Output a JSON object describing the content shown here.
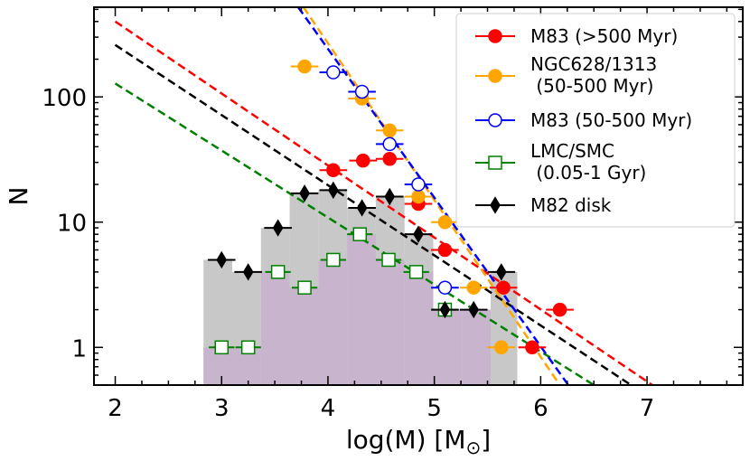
{
  "chart_data": {
    "type": "scatter",
    "title": "",
    "xlabel": "log(M) [M⊙]",
    "ylabel": "N",
    "xlim": [
      1.8,
      7.9
    ],
    "ylim": [
      0.5,
      520
    ],
    "yscale": "log",
    "grid": false,
    "legend_position": "top-right",
    "x_ticks": [
      2,
      3,
      4,
      5,
      6,
      7
    ],
    "y_ticks": [
      1,
      10,
      100
    ],
    "y_tick_labels": [
      "1",
      "10",
      "100"
    ],
    "histograms": [
      {
        "color": "#c8c8c8",
        "bins": [
          {
            "x0": 2.83,
            "x1": 3.1,
            "n": 5
          },
          {
            "x0": 3.1,
            "x1": 3.37,
            "n": 4
          },
          {
            "x0": 3.37,
            "x1": 3.64,
            "n": 9
          },
          {
            "x0": 3.64,
            "x1": 3.91,
            "n": 17
          },
          {
            "x0": 3.91,
            "x1": 4.18,
            "n": 18
          },
          {
            "x0": 4.18,
            "x1": 4.45,
            "n": 13
          },
          {
            "x0": 4.45,
            "x1": 4.72,
            "n": 16
          },
          {
            "x0": 4.72,
            "x1": 4.99,
            "n": 8
          },
          {
            "x0": 4.99,
            "x1": 5.26,
            "n": 2
          },
          {
            "x0": 5.26,
            "x1": 5.53,
            "n": 2
          },
          {
            "x0": 5.53,
            "x1": 5.78,
            "n": 4
          }
        ]
      },
      {
        "color": "#c8b4cc",
        "bins": [
          {
            "x0": 2.83,
            "x1": 3.1,
            "n": 1
          },
          {
            "x0": 3.1,
            "x1": 3.37,
            "n": 1
          },
          {
            "x0": 3.37,
            "x1": 3.64,
            "n": 4
          },
          {
            "x0": 3.64,
            "x1": 3.91,
            "n": 3
          },
          {
            "x0": 3.91,
            "x1": 4.18,
            "n": 5
          },
          {
            "x0": 4.18,
            "x1": 4.45,
            "n": 8
          },
          {
            "x0": 4.45,
            "x1": 4.72,
            "n": 5
          },
          {
            "x0": 4.72,
            "x1": 4.99,
            "n": 4
          },
          {
            "x0": 4.99,
            "x1": 5.26,
            "n": 2
          },
          {
            "x0": 5.26,
            "x1": 5.53,
            "n": 2
          }
        ]
      }
    ],
    "fit_lines": [
      {
        "color": "#ff0000",
        "x": [
          2.0,
          7.05
        ],
        "y": [
          400,
          0.5
        ]
      },
      {
        "color": "#000000",
        "x": [
          2.0,
          6.85
        ],
        "y": [
          260,
          0.5
        ]
      },
      {
        "color": "#008000",
        "x": [
          2.0,
          6.5
        ],
        "y": [
          128,
          0.5
        ]
      },
      {
        "color": "#ffa500",
        "x": [
          3.77,
          6.18
        ],
        "y": [
          520,
          0.5
        ]
      },
      {
        "color": "#0000ff",
        "x": [
          3.72,
          6.26
        ],
        "y": [
          520,
          0.5
        ]
      }
    ],
    "series": [
      {
        "name": "M83 (>500 Myr)",
        "marker": "circle",
        "filled": true,
        "color": "#ff0000",
        "points": [
          {
            "x": 4.05,
            "y": 26,
            "xerr": 0.13
          },
          {
            "x": 4.33,
            "y": 31,
            "xerr": 0.13
          },
          {
            "x": 4.58,
            "y": 32,
            "xerr": 0.13
          },
          {
            "x": 4.85,
            "y": 14,
            "xerr": 0.13
          },
          {
            "x": 5.1,
            "y": 6,
            "xerr": 0.13
          },
          {
            "x": 5.65,
            "y": 3,
            "xerr": 0.13
          },
          {
            "x": 5.92,
            "y": 1,
            "xerr": 0.13
          },
          {
            "x": 6.18,
            "y": 2,
            "xerr": 0.13
          }
        ]
      },
      {
        "name": "NGC628/1313\n (50-500 Myr)",
        "marker": "circle",
        "filled": true,
        "color": "#ffa500",
        "points": [
          {
            "x": 3.78,
            "y": 175,
            "xerr": 0.13
          },
          {
            "x": 4.32,
            "y": 97,
            "xerr": 0.13
          },
          {
            "x": 4.58,
            "y": 54,
            "xerr": 0.13
          },
          {
            "x": 4.85,
            "y": 16,
            "xerr": 0.13
          },
          {
            "x": 5.1,
            "y": 10,
            "xerr": 0.13
          },
          {
            "x": 5.37,
            "y": 3,
            "xerr": 0.13
          },
          {
            "x": 5.63,
            "y": 1,
            "xerr": 0.13
          }
        ]
      },
      {
        "name": "M83 (50-500 Myr)",
        "marker": "circle",
        "filled": false,
        "color": "#0000ff",
        "points": [
          {
            "x": 4.05,
            "y": 157,
            "xerr": 0.13
          },
          {
            "x": 4.32,
            "y": 110,
            "xerr": 0.13
          },
          {
            "x": 4.58,
            "y": 42,
            "xerr": 0.13
          },
          {
            "x": 4.85,
            "y": 20,
            "xerr": 0.13
          },
          {
            "x": 5.1,
            "y": 3,
            "xerr": 0.13
          }
        ]
      },
      {
        "name": "LMC/SMC\n (0.05-1 Gyr)",
        "marker": "square",
        "filled": false,
        "color": "#008000",
        "points": [
          {
            "x": 3.0,
            "y": 1,
            "xerr": 0.12
          },
          {
            "x": 3.25,
            "y": 1,
            "xerr": 0.12
          },
          {
            "x": 3.53,
            "y": 4,
            "xerr": 0.12
          },
          {
            "x": 3.78,
            "y": 3,
            "xerr": 0.12
          },
          {
            "x": 4.05,
            "y": 5,
            "xerr": 0.12
          },
          {
            "x": 4.3,
            "y": 8,
            "xerr": 0.12
          },
          {
            "x": 4.57,
            "y": 5,
            "xerr": 0.12
          },
          {
            "x": 4.83,
            "y": 4,
            "xerr": 0.12
          },
          {
            "x": 5.1,
            "y": 2,
            "xerr": 0.12
          }
        ]
      },
      {
        "name": "M82 disk",
        "marker": "diamond",
        "filled": true,
        "color": "#000000",
        "points": [
          {
            "x": 3.0,
            "y": 5,
            "xerr": 0.13
          },
          {
            "x": 3.25,
            "y": 4,
            "xerr": 0.13
          },
          {
            "x": 3.53,
            "y": 9,
            "xerr": 0.13
          },
          {
            "x": 3.78,
            "y": 17,
            "xerr": 0.13
          },
          {
            "x": 4.05,
            "y": 18,
            "xerr": 0.13
          },
          {
            "x": 4.32,
            "y": 13,
            "xerr": 0.13
          },
          {
            "x": 4.58,
            "y": 16,
            "xerr": 0.13
          },
          {
            "x": 4.85,
            "y": 8,
            "xerr": 0.13
          },
          {
            "x": 5.1,
            "y": 2,
            "xerr": 0.13
          },
          {
            "x": 5.37,
            "y": 2,
            "xerr": 0.13
          },
          {
            "x": 5.63,
            "y": 4,
            "xerr": 0.13
          }
        ]
      }
    ]
  }
}
